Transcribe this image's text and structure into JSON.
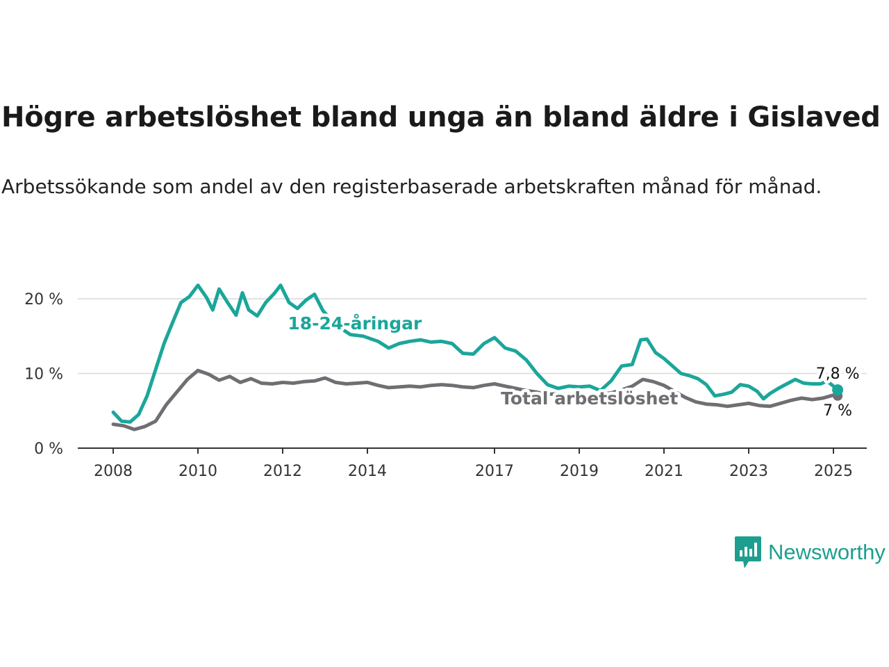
{
  "title": "Högre arbetslöshet bland unga än bland äldre i Gislaved",
  "subtitle": "Arbetssökande som andel av den registerbaserade arbetskraften månad för månad.",
  "brand": {
    "name": "Newsworthy",
    "color": "#1e9e8e",
    "icon": "newsworthy-logo-icon"
  },
  "chart_data": {
    "type": "line",
    "ylim": [
      0,
      22
    ],
    "xlim": [
      2008.0,
      2025.2
    ],
    "grid": true,
    "y_ticks": [
      {
        "value": 0,
        "label": "0 %"
      },
      {
        "value": 10,
        "label": "10 %"
      },
      {
        "value": 20,
        "label": "20 %"
      }
    ],
    "x_ticks": [
      {
        "value": 2008,
        "label": "2008"
      },
      {
        "value": 2010,
        "label": "2010"
      },
      {
        "value": 2012,
        "label": "2012"
      },
      {
        "value": 2014,
        "label": "2014"
      },
      {
        "value": 2017,
        "label": "2017"
      },
      {
        "value": 2019,
        "label": "2019"
      },
      {
        "value": 2021,
        "label": "2021"
      },
      {
        "value": 2023,
        "label": "2023"
      },
      {
        "value": 2025,
        "label": "2025"
      }
    ],
    "series": [
      {
        "name": "Total arbetslöshet",
        "color": "#6e6e73",
        "end_label": "7 %",
        "points": [
          [
            2008.0,
            3.2
          ],
          [
            2008.25,
            3.0
          ],
          [
            2008.5,
            2.5
          ],
          [
            2008.75,
            2.9
          ],
          [
            2009.0,
            3.6
          ],
          [
            2009.25,
            5.8
          ],
          [
            2009.5,
            7.5
          ],
          [
            2009.75,
            9.2
          ],
          [
            2010.0,
            10.4
          ],
          [
            2010.25,
            9.9
          ],
          [
            2010.5,
            9.1
          ],
          [
            2010.75,
            9.6
          ],
          [
            2011.0,
            8.8
          ],
          [
            2011.25,
            9.3
          ],
          [
            2011.5,
            8.7
          ],
          [
            2011.75,
            8.6
          ],
          [
            2012.0,
            8.8
          ],
          [
            2012.25,
            8.7
          ],
          [
            2012.5,
            8.9
          ],
          [
            2012.75,
            9.0
          ],
          [
            2013.0,
            9.4
          ],
          [
            2013.25,
            8.8
          ],
          [
            2013.5,
            8.6
          ],
          [
            2013.75,
            8.7
          ],
          [
            2014.0,
            8.8
          ],
          [
            2014.25,
            8.4
          ],
          [
            2014.5,
            8.1
          ],
          [
            2014.75,
            8.2
          ],
          [
            2015.0,
            8.3
          ],
          [
            2015.25,
            8.2
          ],
          [
            2015.5,
            8.4
          ],
          [
            2015.75,
            8.5
          ],
          [
            2016.0,
            8.4
          ],
          [
            2016.25,
            8.2
          ],
          [
            2016.5,
            8.1
          ],
          [
            2016.75,
            8.4
          ],
          [
            2017.0,
            8.6
          ],
          [
            2017.25,
            8.3
          ],
          [
            2017.5,
            8.0
          ],
          [
            2017.75,
            7.7
          ],
          [
            2018.0,
            7.5
          ],
          [
            2018.25,
            7.2
          ],
          [
            2018.5,
            7.3
          ],
          [
            2018.75,
            7.1
          ],
          [
            2019.0,
            7.1
          ],
          [
            2019.25,
            7.0
          ],
          [
            2019.5,
            7.2
          ],
          [
            2019.75,
            7.4
          ],
          [
            2020.0,
            7.8
          ],
          [
            2020.25,
            8.3
          ],
          [
            2020.5,
            9.2
          ],
          [
            2020.75,
            8.9
          ],
          [
            2021.0,
            8.4
          ],
          [
            2021.25,
            7.6
          ],
          [
            2021.5,
            6.8
          ],
          [
            2021.75,
            6.2
          ],
          [
            2022.0,
            5.9
          ],
          [
            2022.25,
            5.8
          ],
          [
            2022.5,
            5.6
          ],
          [
            2022.75,
            5.8
          ],
          [
            2023.0,
            6.0
          ],
          [
            2023.25,
            5.7
          ],
          [
            2023.5,
            5.6
          ],
          [
            2023.75,
            6.0
          ],
          [
            2024.0,
            6.4
          ],
          [
            2024.25,
            6.7
          ],
          [
            2024.5,
            6.5
          ],
          [
            2024.75,
            6.7
          ],
          [
            2025.0,
            7.1
          ],
          [
            2025.1,
            7.0
          ]
        ]
      },
      {
        "name": "18-24-åringar",
        "color": "#1ba69a",
        "end_label": "7,8 %",
        "points": [
          [
            2008.0,
            4.8
          ],
          [
            2008.2,
            3.6
          ],
          [
            2008.4,
            3.5
          ],
          [
            2008.6,
            4.5
          ],
          [
            2008.8,
            7.0
          ],
          [
            2009.0,
            10.5
          ],
          [
            2009.2,
            14.0
          ],
          [
            2009.4,
            16.8
          ],
          [
            2009.6,
            19.5
          ],
          [
            2009.8,
            20.3
          ],
          [
            2010.0,
            21.8
          ],
          [
            2010.2,
            20.2
          ],
          [
            2010.35,
            18.5
          ],
          [
            2010.5,
            21.3
          ],
          [
            2010.7,
            19.5
          ],
          [
            2010.9,
            17.8
          ],
          [
            2011.05,
            20.8
          ],
          [
            2011.2,
            18.5
          ],
          [
            2011.4,
            17.7
          ],
          [
            2011.6,
            19.5
          ],
          [
            2011.8,
            20.7
          ],
          [
            2011.95,
            21.8
          ],
          [
            2012.15,
            19.5
          ],
          [
            2012.35,
            18.7
          ],
          [
            2012.55,
            19.8
          ],
          [
            2012.75,
            20.6
          ],
          [
            2012.95,
            18.4
          ],
          [
            2013.25,
            16.5
          ],
          [
            2013.6,
            15.2
          ],
          [
            2013.9,
            15.0
          ],
          [
            2014.25,
            14.3
          ],
          [
            2014.5,
            13.4
          ],
          [
            2014.75,
            14.0
          ],
          [
            2015.0,
            14.3
          ],
          [
            2015.25,
            14.5
          ],
          [
            2015.5,
            14.2
          ],
          [
            2015.75,
            14.3
          ],
          [
            2016.0,
            14.0
          ],
          [
            2016.25,
            12.7
          ],
          [
            2016.5,
            12.6
          ],
          [
            2016.75,
            14.0
          ],
          [
            2017.0,
            14.8
          ],
          [
            2017.25,
            13.4
          ],
          [
            2017.5,
            13.0
          ],
          [
            2017.75,
            11.8
          ],
          [
            2018.0,
            10.0
          ],
          [
            2018.25,
            8.5
          ],
          [
            2018.5,
            8.0
          ],
          [
            2018.75,
            8.3
          ],
          [
            2019.0,
            8.2
          ],
          [
            2019.25,
            8.3
          ],
          [
            2019.5,
            7.7
          ],
          [
            2019.75,
            9.0
          ],
          [
            2020.0,
            11.0
          ],
          [
            2020.25,
            11.2
          ],
          [
            2020.45,
            14.5
          ],
          [
            2020.6,
            14.6
          ],
          [
            2020.8,
            12.8
          ],
          [
            2021.0,
            12.0
          ],
          [
            2021.2,
            11.0
          ],
          [
            2021.4,
            10.0
          ],
          [
            2021.6,
            9.7
          ],
          [
            2021.8,
            9.3
          ],
          [
            2022.0,
            8.5
          ],
          [
            2022.2,
            7.0
          ],
          [
            2022.4,
            7.2
          ],
          [
            2022.6,
            7.5
          ],
          [
            2022.8,
            8.5
          ],
          [
            2023.0,
            8.3
          ],
          [
            2023.2,
            7.6
          ],
          [
            2023.35,
            6.6
          ],
          [
            2023.5,
            7.3
          ],
          [
            2023.7,
            8.0
          ],
          [
            2023.9,
            8.6
          ],
          [
            2024.1,
            9.2
          ],
          [
            2024.3,
            8.7
          ],
          [
            2024.5,
            8.6
          ],
          [
            2024.7,
            8.6
          ],
          [
            2024.85,
            9.0
          ],
          [
            2025.0,
            8.3
          ],
          [
            2025.1,
            7.8
          ]
        ]
      }
    ]
  }
}
